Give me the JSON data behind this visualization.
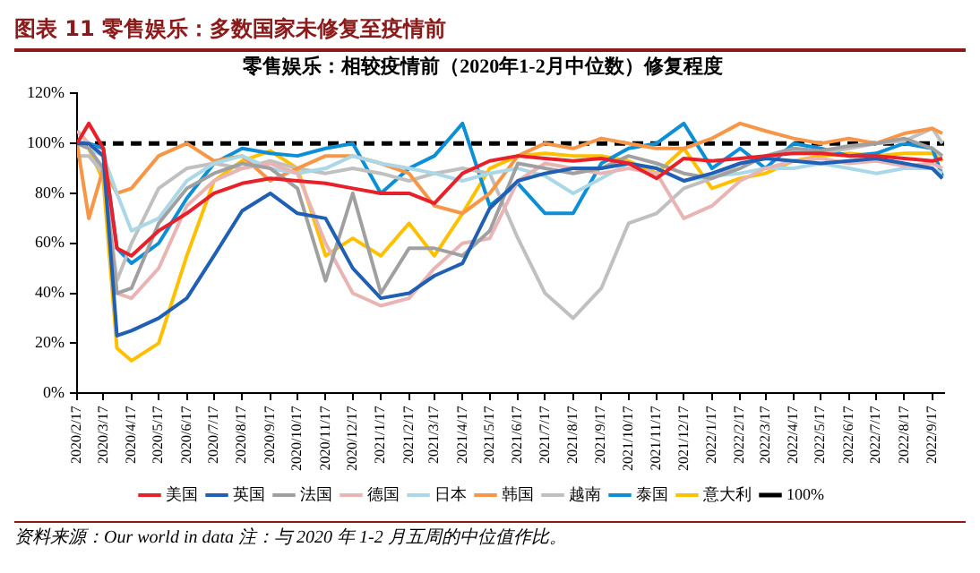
{
  "chart_data": {
    "type": "line",
    "title": "图表 11    零售娱乐：多数国家未修复至疫情前",
    "subtitle": "零售娱乐：相较疫情前（2020年1-2月中位数）修复程度",
    "annotations": [
      "资料来源：Our world in data   注：与 2020 年 1-2 月五周的中位值作比。"
    ],
    "x": [
      "2020-02-17",
      "2020-03-01",
      "2020-03-17",
      "2020-04-01",
      "2020-04-17",
      "2020-05-17",
      "2020-06-17",
      "2020-07-17",
      "2020-08-17",
      "2020-09-17",
      "2020-10-17",
      "2020-11-17",
      "2020-12-17",
      "2021-01-17",
      "2021-02-17",
      "2021-03-17",
      "2021-04-17",
      "2021-05-17",
      "2021-06-17",
      "2021-07-17",
      "2021-08-17",
      "2021-09-17",
      "2021-10-17",
      "2021-11-17",
      "2021-12-17",
      "2022-01-17",
      "2022-02-17",
      "2022-03-17",
      "2022-04-17",
      "2022-05-17",
      "2022-06-17",
      "2022-07-17",
      "2022-08-17",
      "2022-09-17",
      "2022-09-28"
    ],
    "series": [
      {
        "name": "美国",
        "color": "#e8202a",
        "values": [
          100,
          108,
          98,
          58,
          55,
          65,
          72,
          80,
          84,
          86,
          85,
          84,
          82,
          80,
          80,
          76,
          88,
          93,
          95,
          94,
          93,
          94,
          92,
          86,
          94,
          93,
          94,
          95,
          96,
          96,
          95,
          95,
          94,
          93,
          94
        ]
      },
      {
        "name": "英国",
        "color": "#1f5fb4",
        "values": [
          100,
          100,
          95,
          23,
          25,
          30,
          38,
          55,
          73,
          80,
          72,
          70,
          50,
          38,
          40,
          47,
          52,
          74,
          85,
          88,
          90,
          90,
          92,
          90,
          85,
          88,
          92,
          94,
          93,
          92,
          93,
          94,
          92,
          90,
          86
        ]
      },
      {
        "name": "法国",
        "color": "#a0a0a0",
        "values": [
          100,
          98,
          90,
          40,
          42,
          68,
          82,
          88,
          92,
          90,
          82,
          45,
          80,
          40,
          58,
          58,
          55,
          65,
          92,
          90,
          88,
          90,
          95,
          92,
          88,
          86,
          90,
          95,
          98,
          97,
          99,
          100,
          102,
          98,
          95
        ]
      },
      {
        "name": "德国",
        "color": "#e8b4b4",
        "values": [
          105,
          100,
          95,
          40,
          38,
          50,
          75,
          85,
          90,
          92,
          88,
          60,
          40,
          35,
          38,
          50,
          60,
          62,
          85,
          92,
          90,
          88,
          90,
          88,
          70,
          75,
          85,
          90,
          93,
          94,
          92,
          93,
          91,
          92,
          90
        ]
      },
      {
        "name": "日本",
        "color": "#aad8e6",
        "values": [
          100,
          98,
          95,
          80,
          65,
          70,
          85,
          92,
          95,
          90,
          88,
          90,
          95,
          92,
          90,
          88,
          85,
          88,
          90,
          87,
          80,
          86,
          92,
          90,
          85,
          87,
          88,
          90,
          90,
          92,
          90,
          88,
          90,
          90,
          88
        ]
      },
      {
        "name": "韩国",
        "color": "#f79646",
        "values": [
          100,
          70,
          90,
          80,
          82,
          95,
          100,
          93,
          95,
          85,
          90,
          95,
          95,
          92,
          88,
          75,
          72,
          80,
          95,
          100,
          98,
          102,
          100,
          98,
          98,
          102,
          108,
          105,
          102,
          100,
          102,
          100,
          104,
          106,
          104
        ]
      },
      {
        "name": "越南",
        "color": "#c0c0c0",
        "values": [
          95,
          95,
          88,
          45,
          60,
          82,
          90,
          92,
          90,
          93,
          90,
          88,
          90,
          88,
          85,
          88,
          90,
          88,
          62,
          40,
          30,
          42,
          68,
          72,
          82,
          86,
          92,
          94,
          97,
          96,
          98,
          100,
          101,
          106,
          100
        ]
      },
      {
        "name": "泰国",
        "color": "#0d8fd8",
        "values": [
          100,
          100,
          98,
          58,
          52,
          60,
          78,
          92,
          98,
          96,
          95,
          98,
          100,
          80,
          90,
          95,
          108,
          75,
          84,
          72,
          72,
          92,
          98,
          100,
          108,
          90,
          98,
          90,
          100,
          98,
          95,
          96,
          100,
          98,
          87
        ]
      },
      {
        "name": "意大利",
        "color": "#ffc000",
        "values": [
          100,
          98,
          85,
          18,
          13,
          20,
          55,
          85,
          93,
          97,
          90,
          55,
          62,
          55,
          68,
          55,
          72,
          90,
          95,
          96,
          95,
          95,
          93,
          88,
          98,
          82,
          86,
          88,
          93,
          95,
          96,
          95,
          96,
          96,
          93
        ]
      }
    ],
    "ref_lines": [
      {
        "axis": "y",
        "value": 100,
        "label": "100%",
        "color": "#000000",
        "line_style": "dashed"
      }
    ],
    "xlim": [
      "2020-02-17",
      "2022-09-30"
    ],
    "xticks": [
      {
        "value": "2020-02-17",
        "label": "2020/2/17"
      },
      {
        "value": "2020-03-17",
        "label": "2020/3/17"
      },
      {
        "value": "2020-04-17",
        "label": "2020/4/17"
      },
      {
        "value": "2020-05-17",
        "label": "2020/5/17"
      },
      {
        "value": "2020-06-17",
        "label": "2020/6/17"
      },
      {
        "value": "2020-07-17",
        "label": "2020/7/17"
      },
      {
        "value": "2020-08-17",
        "label": "2020/8/17"
      },
      {
        "value": "2020-09-17",
        "label": "2020/9/17"
      },
      {
        "value": "2020-10-17",
        "label": "2020/10/17"
      },
      {
        "value": "2020-11-17",
        "label": "2020/11/17"
      },
      {
        "value": "2020-12-17",
        "label": "2020/12/17"
      },
      {
        "value": "2021-01-17",
        "label": "2021/1/17"
      },
      {
        "value": "2021-02-17",
        "label": "2021/2/17"
      },
      {
        "value": "2021-03-17",
        "label": "2021/3/17"
      },
      {
        "value": "2021-04-17",
        "label": "2021/4/17"
      },
      {
        "value": "2021-05-17",
        "label": "2021/5/17"
      },
      {
        "value": "2021-06-17",
        "label": "2021/6/17"
      },
      {
        "value": "2021-07-17",
        "label": "2021/7/17"
      },
      {
        "value": "2021-08-17",
        "label": "2021/8/17"
      },
      {
        "value": "2021-09-17",
        "label": "2021/9/17"
      },
      {
        "value": "2021-10-17",
        "label": "2021/10/17"
      },
      {
        "value": "2021-11-17",
        "label": "2021/11/17"
      },
      {
        "value": "2021-12-17",
        "label": "2021/12/17"
      },
      {
        "value": "2022-01-17",
        "label": "2022/1/17"
      },
      {
        "value": "2022-02-17",
        "label": "2022/2/17"
      },
      {
        "value": "2022-03-17",
        "label": "2022/3/17"
      },
      {
        "value": "2022-04-17",
        "label": "2022/4/17"
      },
      {
        "value": "2022-05-17",
        "label": "2022/5/17"
      },
      {
        "value": "2022-06-17",
        "label": "2022/6/17"
      },
      {
        "value": "2022-07-17",
        "label": "2022/7/17"
      },
      {
        "value": "2022-08-17",
        "label": "2022/8/17"
      },
      {
        "value": "2022-09-17",
        "label": "2022/9/17"
      }
    ],
    "ylim": [
      0,
      120
    ],
    "yticks": [
      {
        "value": 0,
        "label": "0%"
      },
      {
        "value": 20,
        "label": "20%"
      },
      {
        "value": 40,
        "label": "40%"
      },
      {
        "value": 60,
        "label": "60%"
      },
      {
        "value": 80,
        "label": "80%"
      },
      {
        "value": 100,
        "label": "100%"
      },
      {
        "value": 120,
        "label": "120%"
      }
    ],
    "grid": false,
    "legend": "bottom",
    "marker": "none",
    "line_style": "solid"
  }
}
